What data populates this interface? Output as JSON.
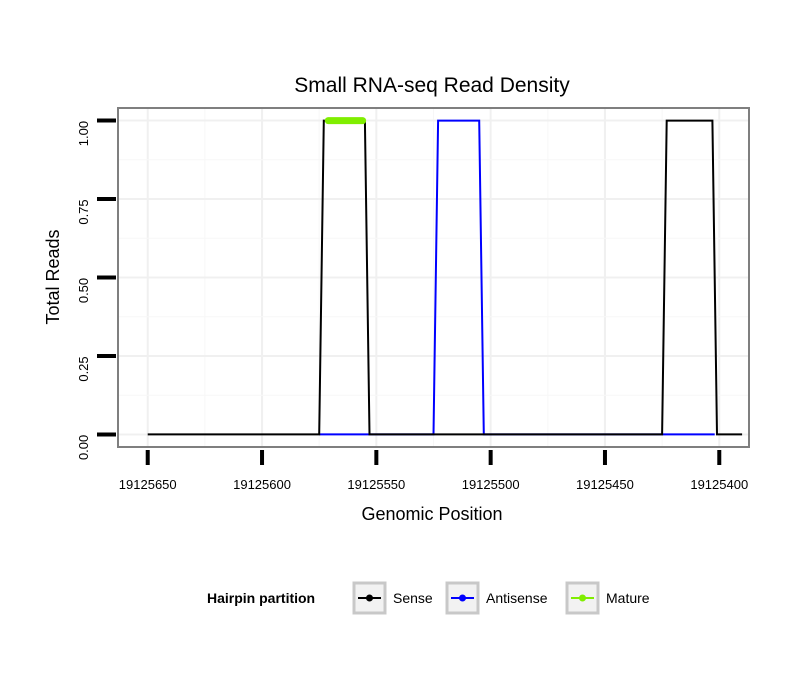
{
  "chart_data": {
    "type": "line",
    "title": "Small RNA-seq Read Density",
    "xlabel": "Genomic Position",
    "ylabel": "Total Reads",
    "x_reversed": true,
    "xlim": [
      19125663,
      19125387
    ],
    "ylim": [
      -0.04,
      1.04
    ],
    "x_ticks": [
      19125650,
      19125600,
      19125550,
      19125500,
      19125450,
      19125400
    ],
    "x_tick_labels": [
      "19125650",
      "19125600",
      "19125550",
      "19125500",
      "19125450",
      "19125400"
    ],
    "y_ticks": [
      0,
      0.25,
      0.5,
      0.75,
      1
    ],
    "y_tick_labels": [
      "0.00",
      "0.25",
      "0.50",
      "0.75",
      "1.00"
    ],
    "grid": true,
    "series": [
      {
        "name": "Antisense",
        "color": "#0000ff",
        "x": [
          19125549,
          19125575,
          19125573,
          19125555,
          19125553,
          19125549,
          19125525,
          19125523,
          19125505,
          19125503,
          19125480,
          19125425,
          19125423,
          19125402
        ],
        "y": [
          0,
          0,
          0,
          0,
          0,
          0,
          0,
          1,
          1,
          0,
          0,
          0,
          0,
          0
        ]
      },
      {
        "name": "Sense",
        "color": "#000000",
        "x": [
          19125650,
          19125575,
          19125573,
          19125555,
          19125553,
          19125425,
          19125423,
          19125403,
          19125401,
          19125390
        ],
        "y": [
          0,
          0,
          1,
          1,
          0,
          0,
          1,
          1,
          0,
          0
        ]
      },
      {
        "name": "Mature",
        "color": "#80ee00",
        "x": [
          19125571,
          19125556
        ],
        "y": [
          1,
          1
        ]
      }
    ],
    "legend": {
      "title": "Hairpin partition",
      "position": "bottom",
      "entries": [
        {
          "label": "Sense",
          "color": "#000000"
        },
        {
          "label": "Antisense",
          "color": "#0000ff"
        },
        {
          "label": "Mature",
          "color": "#80ee00"
        }
      ]
    }
  }
}
